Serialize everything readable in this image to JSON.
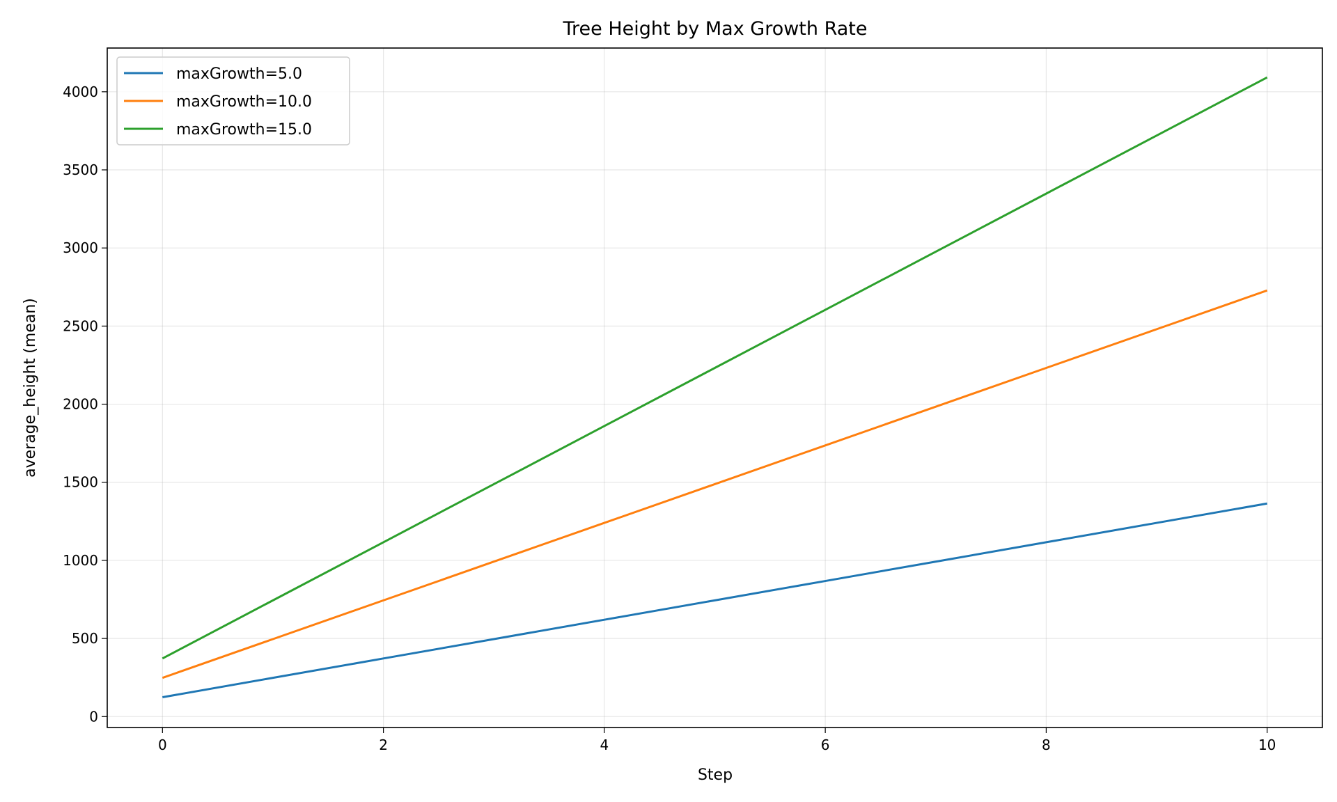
{
  "chart_data": {
    "type": "line",
    "title": "Tree Height by Max Growth Rate",
    "xlabel": "Step",
    "ylabel": "average_height (mean)",
    "x": [
      0,
      1,
      2,
      3,
      4,
      5,
      6,
      7,
      8,
      9,
      10
    ],
    "xlim": [
      -0.5,
      10.5
    ],
    "ylim": [
      -70,
      4280
    ],
    "xticks": [
      0,
      2,
      4,
      6,
      8,
      10
    ],
    "yticks": [
      0,
      500,
      1000,
      1500,
      2000,
      2500,
      3000,
      3500,
      4000
    ],
    "grid": true,
    "legend_position": "top-left",
    "series": [
      {
        "name": "maxGrowth=5.0",
        "color": "#1f77b4",
        "values": [
          124,
          248,
          372,
          496,
          620,
          744,
          868,
          992,
          1116,
          1240,
          1364
        ]
      },
      {
        "name": "maxGrowth=10.0",
        "color": "#ff7f0e",
        "values": [
          248,
          496,
          744,
          992,
          1240,
          1488,
          1736,
          1984,
          2232,
          2480,
          2728
        ]
      },
      {
        "name": "maxGrowth=15.0",
        "color": "#2ca02c",
        "values": [
          372,
          744,
          1116,
          1488,
          1860,
          2232,
          2604,
          2976,
          3348,
          3720,
          4092
        ]
      }
    ]
  }
}
